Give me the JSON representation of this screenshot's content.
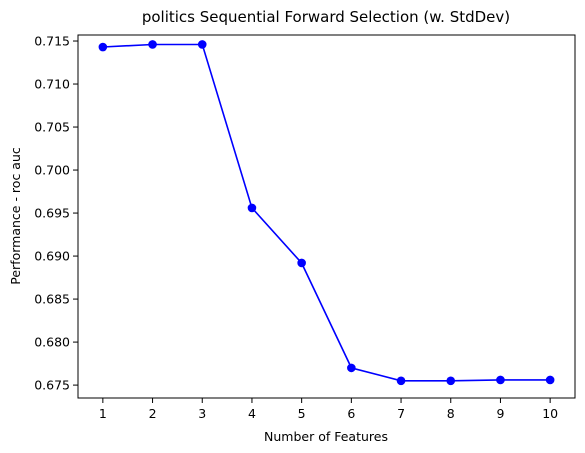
{
  "chart_data": {
    "type": "line",
    "title": "politics Sequential Forward Selection (w. StdDev)",
    "xlabel": "Number of Features",
    "ylabel": "Performance - roc auc",
    "x": [
      1,
      2,
      3,
      4,
      5,
      6,
      7,
      8,
      9,
      10
    ],
    "y": [
      0.7143,
      0.7146,
      0.7146,
      0.6956,
      0.6892,
      0.677,
      0.6755,
      0.6755,
      0.6756,
      0.6756
    ],
    "xlim": [
      0.5,
      10.5
    ],
    "ylim": [
      0.6735,
      0.7157
    ],
    "xticks": [
      "1",
      "2",
      "3",
      "4",
      "5",
      "6",
      "7",
      "8",
      "9",
      "10"
    ],
    "yticks": [
      "0.675",
      "0.680",
      "0.685",
      "0.690",
      "0.695",
      "0.700",
      "0.705",
      "0.710",
      "0.715"
    ],
    "grid": false,
    "colors": {
      "line": "#0000ff",
      "marker": "#0000ff"
    }
  }
}
